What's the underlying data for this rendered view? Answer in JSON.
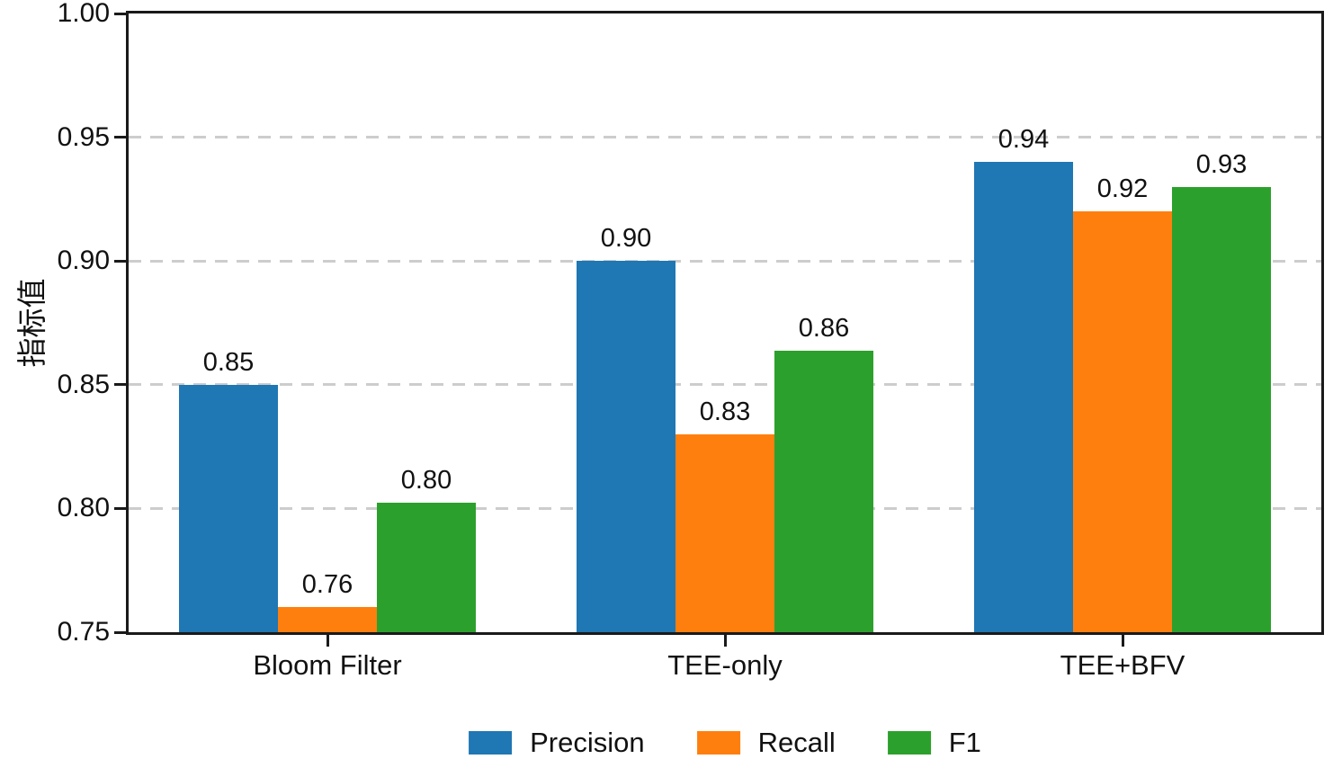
{
  "chart_data": {
    "type": "bar",
    "categories": [
      "Bloom Filter",
      "TEE-only",
      "TEE+BFV"
    ],
    "series": [
      {
        "name": "Precision",
        "color": "#1f77b4",
        "values": [
          0.85,
          0.9,
          0.94
        ],
        "labels": [
          "0.85",
          "0.90",
          "0.94"
        ]
      },
      {
        "name": "Recall",
        "color": "#ff7f0e",
        "values": [
          0.76,
          0.83,
          0.92
        ],
        "labels": [
          "0.76",
          "0.83",
          "0.92"
        ]
      },
      {
        "name": "F1",
        "color": "#2ca02c",
        "values": [
          0.8025,
          0.8636,
          0.9299
        ],
        "labels": [
          "0.80",
          "0.86",
          "0.93"
        ]
      }
    ],
    "title": "",
    "xlabel": "",
    "ylabel": "指标值",
    "ylim": [
      0.75,
      1.0
    ],
    "yticks": [
      {
        "label": "1.00",
        "value": 1.0
      },
      {
        "label": "0.95",
        "value": 0.95
      },
      {
        "label": "0.90",
        "value": 0.9
      },
      {
        "label": "0.85",
        "value": 0.85
      },
      {
        "label": "0.80",
        "value": 0.8
      },
      {
        "label": "0.75",
        "value": 0.75
      }
    ],
    "grid": "horizontal-dashed",
    "grid_color": "#cdcdcd",
    "legend_position": "bottom-center",
    "spine_color": "#1a1a1a",
    "background": "#ffffff"
  }
}
